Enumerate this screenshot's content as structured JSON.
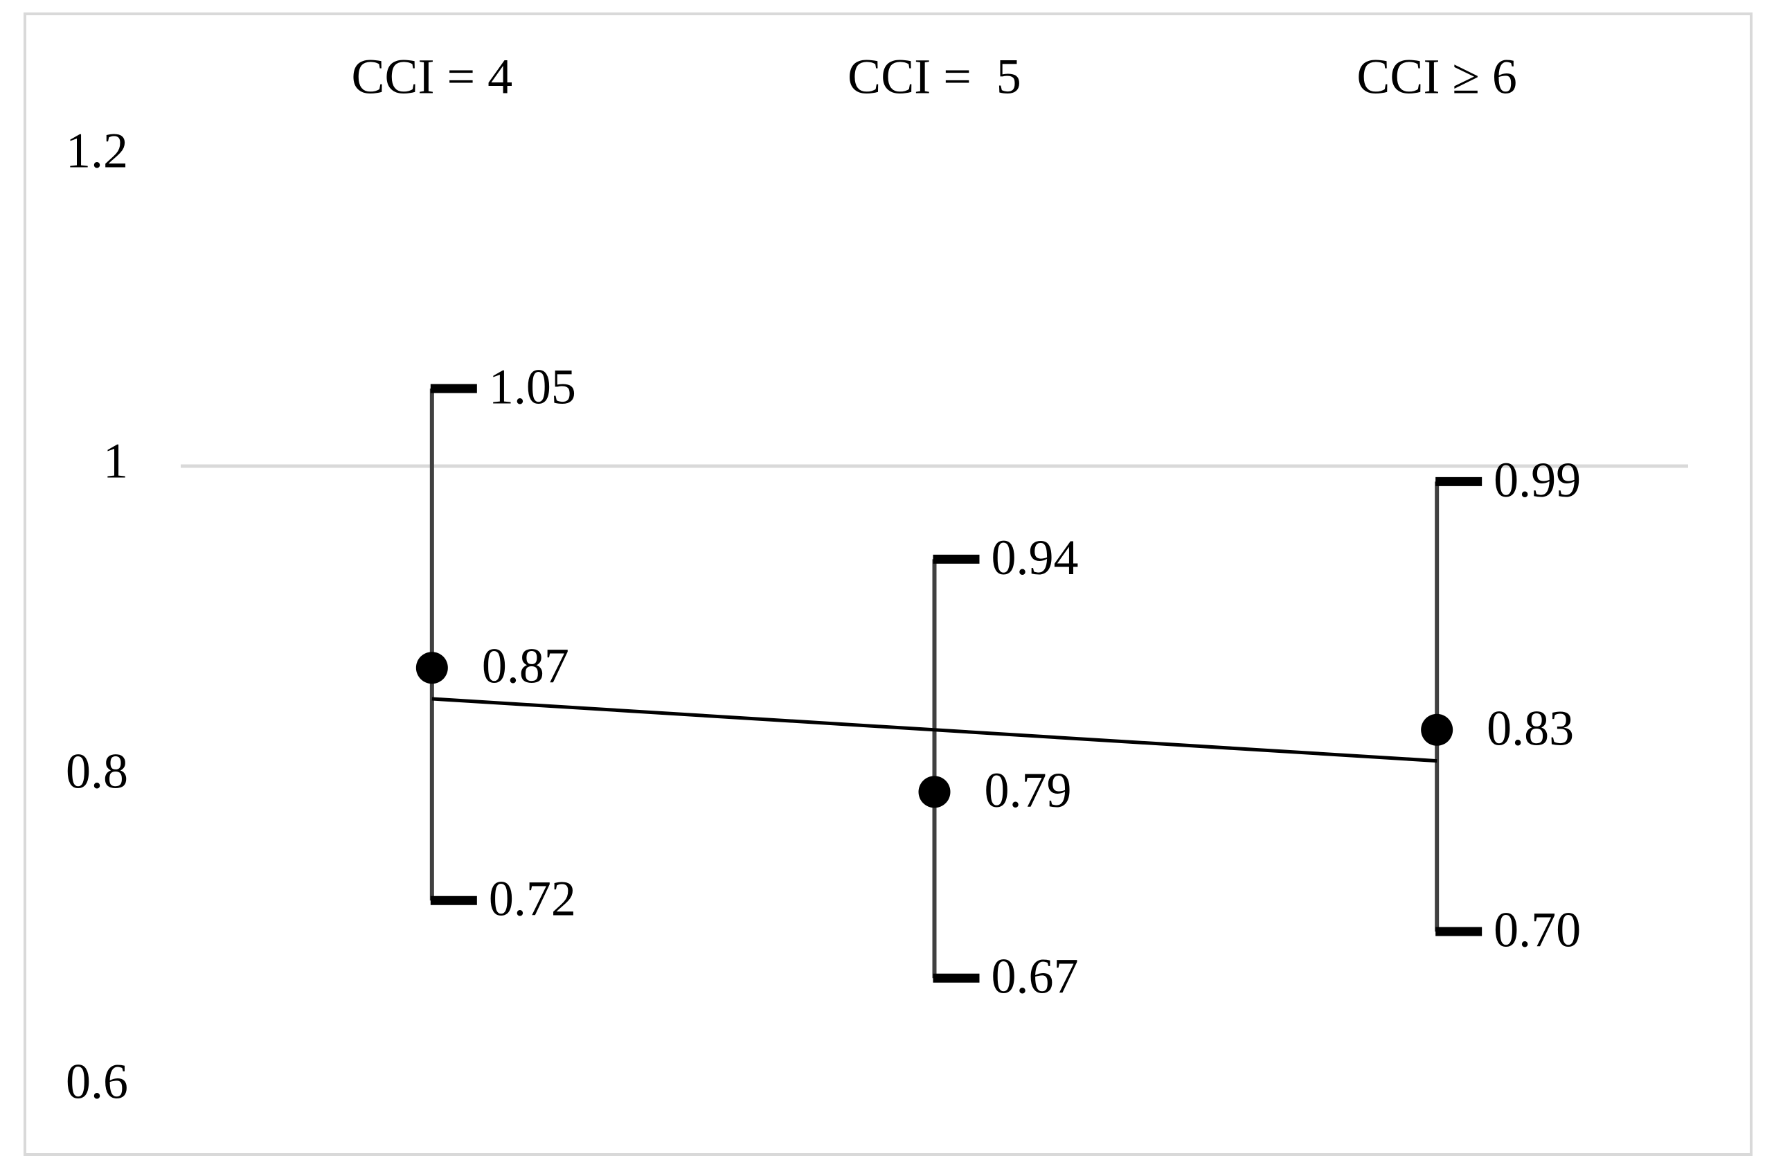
{
  "chart_data": {
    "type": "errorbar",
    "categories": [
      "CCI = 4",
      "CCI =  5",
      "CCI ≥ 6"
    ],
    "values": [
      0.87,
      0.79,
      0.83
    ],
    "lower": [
      0.72,
      0.67,
      0.7
    ],
    "lower_value_labels": [
      "0.72",
      "0.67",
      "0.70"
    ],
    "upper": [
      1.05,
      0.94,
      0.99
    ],
    "color": "#000000",
    "bar_color": "#404040",
    "ylim": [
      0.6,
      1.2
    ],
    "yticks": [
      0.6,
      0.8,
      1,
      1.2
    ],
    "gridlines_at": [
      1
    ],
    "trendline": true
  }
}
